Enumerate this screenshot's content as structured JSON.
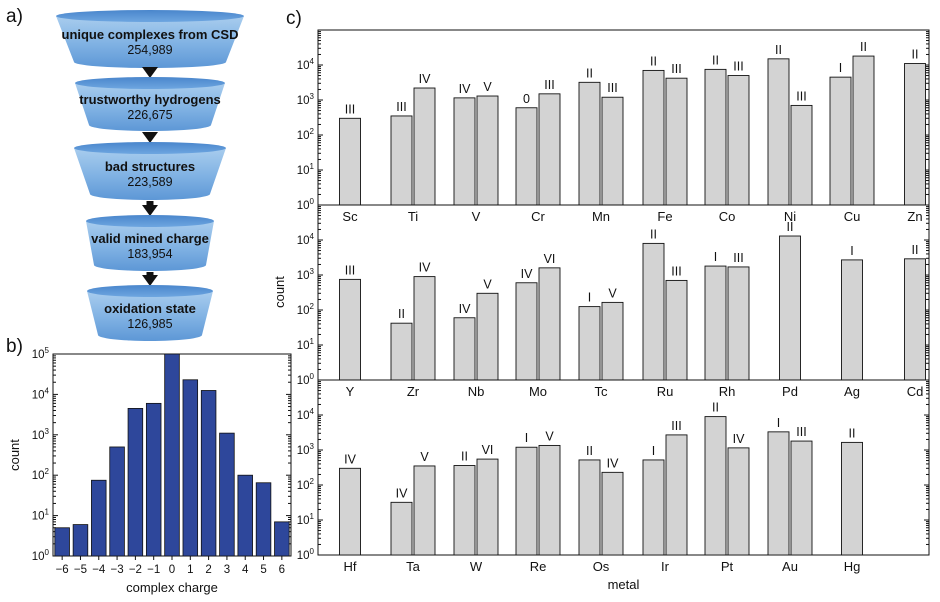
{
  "panel_labels": {
    "a": "a)",
    "b": "b)",
    "c": "c)"
  },
  "funnel": {
    "stages": [
      {
        "label": "unique complexes from CSD",
        "count": "254,989"
      },
      {
        "label": "trustworthy hydrogens",
        "count": "226,675"
      },
      {
        "label": "bad structures",
        "count": "223,589"
      },
      {
        "label": "valid mined charge",
        "count": "183,954"
      },
      {
        "label": "oxidation state",
        "count": "126,985"
      }
    ]
  },
  "chart_data": [
    {
      "type": "bar",
      "panel": "b",
      "categories": [
        "−6",
        "−5",
        "−4",
        "−3",
        "−2",
        "−1",
        "0",
        "1",
        "2",
        "3",
        "4",
        "5",
        "6"
      ],
      "values": [
        5,
        6,
        75,
        500,
        4500,
        6000,
        100000,
        23000,
        12500,
        1100,
        100,
        65,
        7
      ],
      "xlabel": "complex charge",
      "ylabel": "count",
      "yscale": "log",
      "ylim": [
        1,
        100000
      ],
      "color": "#2e479b",
      "yticks": [
        {
          "base": "10",
          "exp": "0"
        },
        {
          "base": "10",
          "exp": "1"
        },
        {
          "base": "10",
          "exp": "2"
        },
        {
          "base": "10",
          "exp": "3"
        },
        {
          "base": "10",
          "exp": "4"
        },
        {
          "base": "10",
          "exp": "5"
        }
      ]
    },
    {
      "type": "bar",
      "panel": "c",
      "xlabel": "metal",
      "ylabel": "count",
      "yscale": "log",
      "ylim": [
        1,
        100000
      ],
      "color": "#d3d3d3",
      "yticks": [
        {
          "base": "10",
          "exp": "0"
        },
        {
          "base": "10",
          "exp": "1"
        },
        {
          "base": "10",
          "exp": "2"
        },
        {
          "base": "10",
          "exp": "3"
        },
        {
          "base": "10",
          "exp": "4"
        }
      ],
      "rows": [
        {
          "metals": [
            {
              "name": "Sc",
              "bars": [
                {
                  "ox": "III",
                  "value": 300
                }
              ]
            },
            {
              "name": "Ti",
              "bars": [
                {
                  "ox": "III",
                  "value": 350
                },
                {
                  "ox": "IV",
                  "value": 2200
                }
              ]
            },
            {
              "name": "V",
              "bars": [
                {
                  "ox": "IV",
                  "value": 1150
                },
                {
                  "ox": "V",
                  "value": 1300
                }
              ]
            },
            {
              "name": "Cr",
              "bars": [
                {
                  "ox": "0",
                  "value": 600
                },
                {
                  "ox": "III",
                  "value": 1500
                }
              ]
            },
            {
              "name": "Mn",
              "bars": [
                {
                  "ox": "II",
                  "value": 3200
                },
                {
                  "ox": "III",
                  "value": 1200
                }
              ]
            },
            {
              "name": "Fe",
              "bars": [
                {
                  "ox": "II",
                  "value": 7000
                },
                {
                  "ox": "III",
                  "value": 4200
                }
              ]
            },
            {
              "name": "Co",
              "bars": [
                {
                  "ox": "II",
                  "value": 7500
                },
                {
                  "ox": "III",
                  "value": 5000
                }
              ]
            },
            {
              "name": "Ni",
              "bars": [
                {
                  "ox": "II",
                  "value": 15000
                },
                {
                  "ox": "III",
                  "value": 700
                }
              ]
            },
            {
              "name": "Cu",
              "bars": [
                {
                  "ox": "I",
                  "value": 4500
                },
                {
                  "ox": "II",
                  "value": 18000
                }
              ]
            },
            {
              "name": "Zn",
              "bars": [
                {
                  "ox": "II",
                  "value": 11000
                }
              ]
            }
          ]
        },
        {
          "metals": [
            {
              "name": "Y",
              "bars": [
                {
                  "ox": "III",
                  "value": 750
                }
              ]
            },
            {
              "name": "Zr",
              "bars": [
                {
                  "ox": "II",
                  "value": 42
                },
                {
                  "ox": "IV",
                  "value": 900
                }
              ]
            },
            {
              "name": "Nb",
              "bars": [
                {
                  "ox": "IV",
                  "value": 60
                },
                {
                  "ox": "V",
                  "value": 300
                }
              ]
            },
            {
              "name": "Mo",
              "bars": [
                {
                  "ox": "IV",
                  "value": 600
                },
                {
                  "ox": "VI",
                  "value": 1600
                }
              ]
            },
            {
              "name": "Tc",
              "bars": [
                {
                  "ox": "I",
                  "value": 125
                },
                {
                  "ox": "V",
                  "value": 165
                }
              ]
            },
            {
              "name": "Ru",
              "bars": [
                {
                  "ox": "II",
                  "value": 8000
                },
                {
                  "ox": "III",
                  "value": 700
                }
              ]
            },
            {
              "name": "Rh",
              "bars": [
                {
                  "ox": "I",
                  "value": 1800
                },
                {
                  "ox": "III",
                  "value": 1700
                }
              ]
            },
            {
              "name": "Pd",
              "bars": [
                {
                  "ox": "II",
                  "value": 13000
                }
              ]
            },
            {
              "name": "Ag",
              "bars": [
                {
                  "ox": "I",
                  "value": 2700
                }
              ]
            },
            {
              "name": "Cd",
              "bars": [
                {
                  "ox": "II",
                  "value": 2900
                }
              ]
            }
          ]
        },
        {
          "metals": [
            {
              "name": "Hf",
              "bars": [
                {
                  "ox": "IV",
                  "value": 300
                }
              ]
            },
            {
              "name": "Ta",
              "bars": [
                {
                  "ox": "IV",
                  "value": 32
                },
                {
                  "ox": "V",
                  "value": 350
                }
              ]
            },
            {
              "name": "W",
              "bars": [
                {
                  "ox": "II",
                  "value": 360
                },
                {
                  "ox": "VI",
                  "value": 550
                }
              ]
            },
            {
              "name": "Re",
              "bars": [
                {
                  "ox": "I",
                  "value": 1200
                },
                {
                  "ox": "V",
                  "value": 1350
                }
              ]
            },
            {
              "name": "Os",
              "bars": [
                {
                  "ox": "II",
                  "value": 520
                },
                {
                  "ox": "IV",
                  "value": 230
                }
              ]
            },
            {
              "name": "Ir",
              "bars": [
                {
                  "ox": "I",
                  "value": 520
                },
                {
                  "ox": "III",
                  "value": 2700
                }
              ]
            },
            {
              "name": "Pt",
              "bars": [
                {
                  "ox": "II",
                  "value": 9000
                },
                {
                  "ox": "IV",
                  "value": 1150
                }
              ]
            },
            {
              "name": "Au",
              "bars": [
                {
                  "ox": "I",
                  "value": 3300
                },
                {
                  "ox": "III",
                  "value": 1800
                }
              ]
            },
            {
              "name": "Hg",
              "bars": [
                {
                  "ox": "II",
                  "value": 1650
                }
              ]
            }
          ]
        }
      ]
    }
  ]
}
